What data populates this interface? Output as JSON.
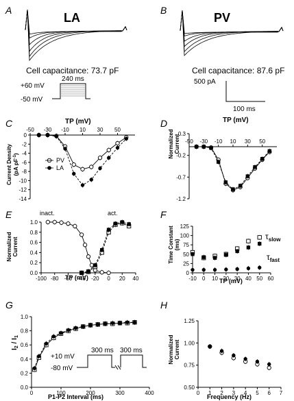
{
  "panels": {
    "A": {
      "letter": "A",
      "title": "LA",
      "capacitance": "Cell capacitance: 73.7 pF",
      "protocol": {
        "v_high": "+60 mV",
        "v_low": "-50 mV",
        "duration": "240 ms"
      }
    },
    "B": {
      "letter": "B",
      "title": "PV",
      "capacitance": "Cell capacitance: 87.6 pF",
      "scalebar": {
        "amp": "500 pA",
        "time": "100 ms"
      }
    },
    "C": {
      "letter": "C",
      "xlabel": "TP (mV)",
      "ylabel_1": "Current Density",
      "ylabel_2": "(pA pF",
      "ylabel_sup": "-1",
      "ylabel_3": ")",
      "legend": [
        "PV",
        "LA"
      ]
    },
    "D": {
      "letter": "D",
      "xlabel": "TP (mV)",
      "ylabel_1": "Normalized",
      "ylabel_2": "Current"
    },
    "E": {
      "letter": "E",
      "xlabel": "TP (mV)",
      "ylabel_1": "Normalized",
      "ylabel_2": "Current",
      "label_inact": "inact.",
      "label_act": "act."
    },
    "F": {
      "letter": "F",
      "xlabel": "TP (mV)",
      "ylabel_1": "Time Constant",
      "ylabel_2": "(ms)",
      "tau_symbol": "τ",
      "tau_slow_sub": "slow",
      "tau_fast_sub": "fast"
    },
    "G": {
      "letter": "G",
      "xlabel": "P1-P2 Interval (ms)",
      "ylabel": "I",
      "ylabel_sub1": "2",
      "ylabel_mid": " / I",
      "ylabel_sub2": "1",
      "protocol": {
        "v_high": "+10 mV",
        "v_low": "-80 mV",
        "p1": "300 ms",
        "p2": "300 ms"
      }
    },
    "H": {
      "letter": "H",
      "xlabel": "Frequency (Hz)",
      "ylabel_1": "Normalized",
      "ylabel_2": "Current"
    }
  },
  "chart_data": [
    {
      "panel": "C",
      "type": "line",
      "xlabel": "TP (mV)",
      "ylabel": "Current Density (pA pF-1)",
      "xlim": [
        -50,
        70
      ],
      "ylim": [
        -14,
        0
      ],
      "xticks": [
        -50,
        -30,
        -10,
        10,
        30,
        50
      ],
      "yticks": [
        0,
        -2,
        -4,
        -6,
        -8,
        -10,
        -12,
        -14
      ],
      "series": [
        {
          "name": "PV",
          "marker": "open-circle",
          "x": [
            -40,
            -30,
            -20,
            -10,
            0,
            10,
            20,
            30,
            40,
            50,
            60
          ],
          "y": [
            0,
            0,
            -0.2,
            -2.5,
            -6.5,
            -7.5,
            -7,
            -5,
            -3.3,
            -1.8,
            -0.5
          ]
        },
        {
          "name": "LA",
          "marker": "filled-circle",
          "x": [
            -40,
            -30,
            -20,
            -10,
            0,
            10,
            20,
            30,
            40,
            50,
            60
          ],
          "y": [
            0,
            0,
            -0.3,
            -3,
            -8.5,
            -11,
            -9.8,
            -7.3,
            -5,
            -2.8,
            -0.8
          ]
        }
      ]
    },
    {
      "panel": "D",
      "type": "line",
      "xlabel": "TP (mV)",
      "ylabel": "Normalized Current",
      "xlim": [
        -50,
        70
      ],
      "ylim": [
        -1.2,
        0.3
      ],
      "xticks": [
        -50,
        -30,
        -10,
        10,
        30,
        50
      ],
      "yticks": [
        0.3,
        -0.2,
        -0.7,
        -1.2
      ],
      "series": [
        {
          "marker": "open-circle",
          "x": [
            -40,
            -30,
            -20,
            -10,
            0,
            10,
            20,
            30,
            40,
            50,
            60
          ],
          "y": [
            0,
            0,
            -0.02,
            -0.3,
            -0.85,
            -1.0,
            -0.93,
            -0.72,
            -0.5,
            -0.3,
            -0.12
          ]
        },
        {
          "marker": "filled-square",
          "x": [
            -40,
            -30,
            -20,
            -10,
            0,
            10,
            20,
            30,
            40,
            50,
            60
          ],
          "y": [
            0,
            0,
            -0.03,
            -0.35,
            -0.82,
            -0.98,
            -0.9,
            -0.68,
            -0.47,
            -0.28,
            -0.1
          ]
        }
      ]
    },
    {
      "panel": "E",
      "type": "line",
      "xlabel": "TP (mV)",
      "ylabel": "Normalized Current",
      "xlim": [
        -100,
        40
      ],
      "ylim": [
        0,
        1.0
      ],
      "xticks": [
        -100,
        -80,
        -60,
        -40,
        -20,
        0,
        20,
        40
      ],
      "yticks": [
        0,
        0.2,
        0.4,
        0.6,
        0.8,
        1.0
      ],
      "series": [
        {
          "name": "inact.",
          "marker": "open-circle",
          "x": [
            -90,
            -80,
            -70,
            -60,
            -50,
            -40,
            -35,
            -30,
            -25,
            -20,
            -10,
            0
          ],
          "y": [
            1,
            1,
            0.99,
            0.97,
            0.92,
            0.75,
            0.55,
            0.32,
            0.15,
            0.05,
            0.01,
            0
          ]
        },
        {
          "name": "act.",
          "marker": "open-square",
          "x": [
            -40,
            -30,
            -20,
            -10,
            0,
            10,
            20,
            30
          ],
          "y": [
            0,
            0.02,
            0.12,
            0.4,
            0.8,
            0.95,
            0.98,
            0.92
          ]
        },
        {
          "name": "act.",
          "marker": "filled-square",
          "x": [
            -40,
            -30,
            -20,
            -10,
            0,
            10,
            20,
            30
          ],
          "y": [
            0,
            0.03,
            0.15,
            0.45,
            0.85,
            0.97,
            1.0,
            0.96
          ]
        }
      ]
    },
    {
      "panel": "F",
      "type": "scatter",
      "xlabel": "TP (mV)",
      "ylabel": "Time Constant (ms)",
      "xlim": [
        -10,
        60
      ],
      "ylim": [
        0,
        125
      ],
      "xticks": [
        -10,
        0,
        10,
        20,
        30,
        40,
        50,
        60
      ],
      "yticks": [
        0,
        25,
        50,
        75,
        100,
        125
      ],
      "series": [
        {
          "name": "τslow",
          "marker": "open-square",
          "x": [
            -10,
            0,
            10,
            20,
            30,
            40,
            50
          ],
          "y": [
            55,
            40,
            45,
            50,
            65,
            85,
            95
          ]
        },
        {
          "name": "τslow",
          "marker": "filled-square",
          "x": [
            -10,
            0,
            10,
            20,
            30,
            40,
            50
          ],
          "y": [
            50,
            42,
            40,
            48,
            58,
            68,
            78
          ]
        },
        {
          "name": "τfast",
          "marker": "filled-circle",
          "x": [
            -10,
            0,
            10,
            20,
            30,
            40,
            50
          ],
          "y": [
            8,
            8,
            8,
            9,
            10,
            12,
            14
          ]
        }
      ]
    },
    {
      "panel": "G",
      "type": "line",
      "xlabel": "P1-P2 Interval (ms)",
      "ylabel": "I2 / I1",
      "xlim": [
        0,
        400
      ],
      "ylim": [
        0,
        1.0
      ],
      "xticks": [
        0,
        100,
        200,
        300,
        400
      ],
      "yticks": [
        0,
        0.2,
        0.4,
        0.6,
        0.8,
        1.0
      ],
      "series": [
        {
          "marker": "open-square",
          "x": [
            10,
            25,
            50,
            75,
            100,
            125,
            150,
            175,
            200,
            225,
            250,
            275,
            300,
            325,
            350
          ],
          "y": [
            0.25,
            0.42,
            0.6,
            0.7,
            0.76,
            0.8,
            0.83,
            0.86,
            0.88,
            0.89,
            0.9,
            0.9,
            0.91,
            0.91,
            0.92
          ]
        },
        {
          "marker": "filled-circle",
          "x": [
            10,
            25,
            50,
            75,
            100,
            125,
            150,
            175,
            200,
            225,
            250,
            275,
            300,
            325,
            350
          ],
          "y": [
            0.27,
            0.44,
            0.62,
            0.72,
            0.77,
            0.81,
            0.84,
            0.86,
            0.88,
            0.89,
            0.9,
            0.91,
            0.91,
            0.92,
            0.92
          ]
        }
      ]
    },
    {
      "panel": "H",
      "type": "scatter",
      "xlabel": "Frequency (Hz)",
      "ylabel": "Normalized Current",
      "xlim": [
        0,
        7
      ],
      "ylim": [
        0.5,
        1.25
      ],
      "xticks": [
        0,
        1,
        2,
        3,
        4,
        5,
        6,
        7
      ],
      "yticks": [
        0.5,
        0.75,
        1.0,
        1.25
      ],
      "series": [
        {
          "marker": "open-circle",
          "x": [
            1,
            2,
            3,
            4,
            5,
            6
          ],
          "y": [
            0.96,
            0.89,
            0.83,
            0.79,
            0.76,
            0.72
          ]
        },
        {
          "marker": "filled-circle",
          "x": [
            1,
            2,
            3,
            4,
            5,
            6
          ],
          "y": [
            0.96,
            0.91,
            0.86,
            0.82,
            0.79,
            0.76
          ]
        }
      ]
    }
  ]
}
